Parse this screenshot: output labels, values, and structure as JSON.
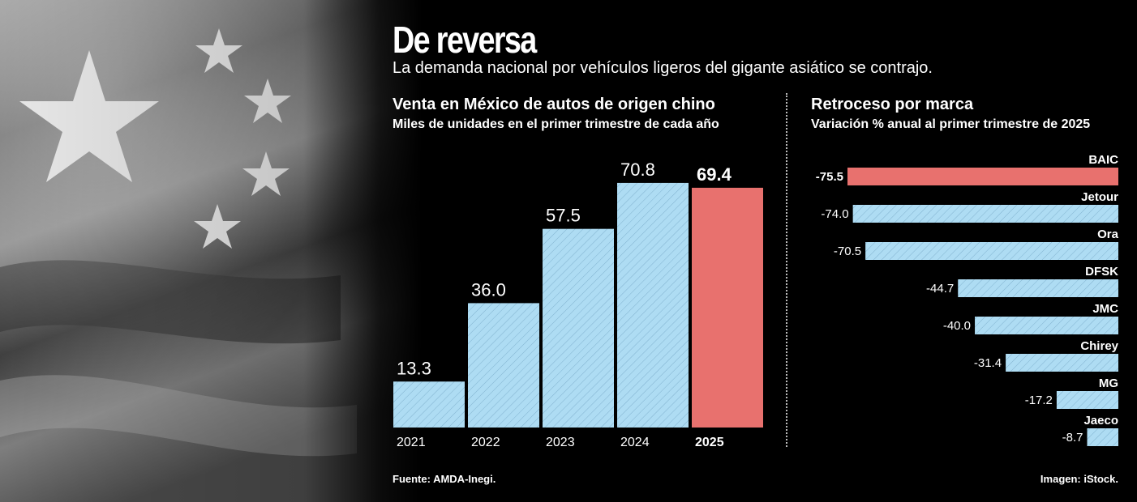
{
  "header": {
    "title": "De reversa",
    "subtitle": "La demanda nacional por vehículos ligeros del gigante asiático se contrajo."
  },
  "colors": {
    "blue": "#aedcf3",
    "red": "#e8716e",
    "highlight": "#e8716e"
  },
  "chart_data": [
    {
      "type": "bar",
      "title": "Venta en México de autos de origen chino",
      "subtitle": "Miles de unidades en el primer trimestre de cada año",
      "categories": [
        "2021",
        "2022",
        "2023",
        "2024",
        "2025"
      ],
      "values": [
        13.3,
        36.0,
        57.5,
        70.8,
        69.4
      ],
      "value_labels": [
        "13.3",
        "36.0",
        "57.5",
        "70.8",
        "69.4"
      ],
      "highlight_index": 4,
      "ylim": [
        0,
        75
      ]
    },
    {
      "type": "bar",
      "orientation": "horizontal",
      "title": "Retroceso por marca",
      "subtitle": "Variación % anual al primer trimestre de 2025",
      "categories": [
        "BAIC",
        "Jetour",
        "Ora",
        "DFSK",
        "JMC",
        "Chirey",
        "MG",
        "Jaeco"
      ],
      "values": [
        -75.5,
        -74.0,
        -70.5,
        -44.7,
        -40.0,
        -31.4,
        -17.2,
        -8.7
      ],
      "value_labels": [
        "-75.5",
        "-74.0",
        "-70.5",
        "-44.7",
        "-40.0",
        "-31.4",
        "-17.2",
        "-8.7"
      ],
      "highlight_index": 0,
      "xlim": [
        -75.5,
        0
      ]
    }
  ],
  "footer": {
    "source": "Fuente: AMDA-Inegi.",
    "credit": "Imagen: iStock."
  }
}
